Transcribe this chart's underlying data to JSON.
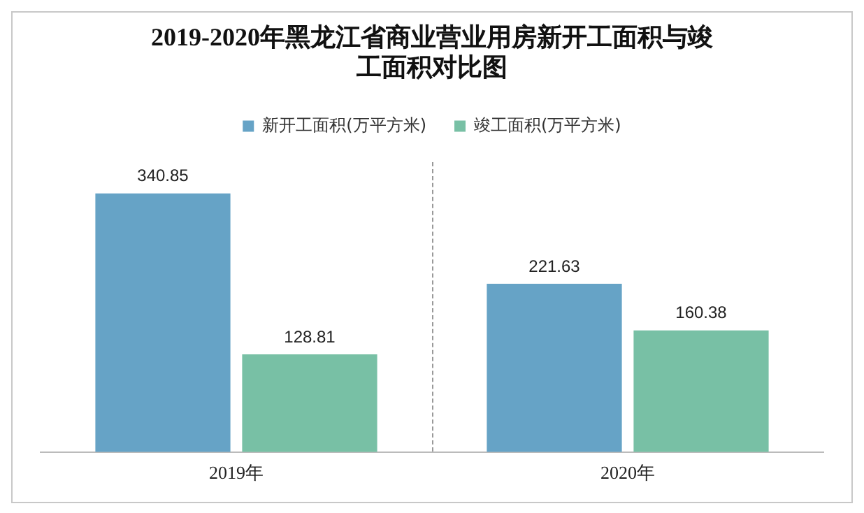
{
  "chart_data": {
    "type": "bar",
    "title": "2019-2020年黑龙江省商业营业用房新开工面积与竣工面积对比图",
    "categories": [
      "2019年",
      "2020年"
    ],
    "series": [
      {
        "name": "新开工面积(万平方米)",
        "color": "#66a3c6",
        "values": [
          340.85,
          221.63
        ]
      },
      {
        "name": "竣工面积(万平方米)",
        "color": "#78c0a5",
        "values": [
          128.81,
          160.38
        ]
      }
    ],
    "data_labels": true,
    "legend": "top",
    "grid": false
  }
}
